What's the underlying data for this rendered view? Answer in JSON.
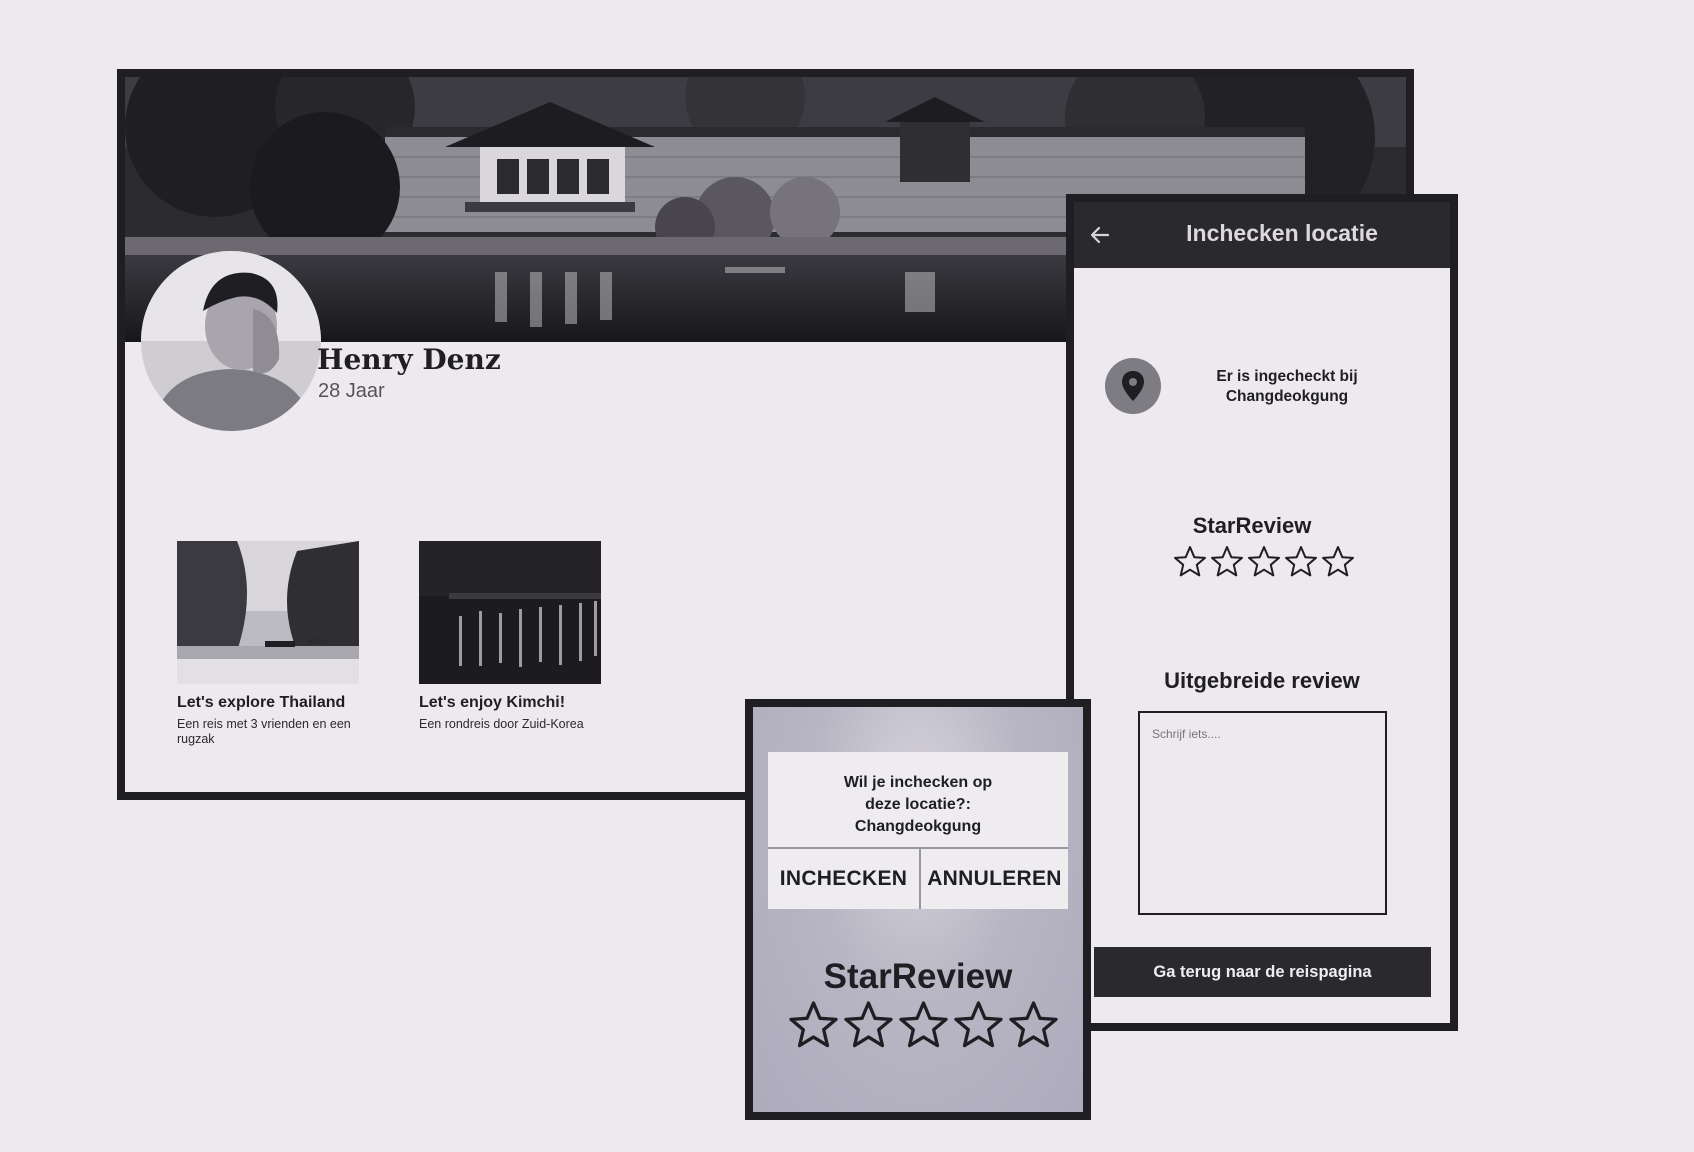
{
  "profile": {
    "name": "Henry Denz",
    "age": "28 Jaar",
    "trips": [
      {
        "title": "Let's explore Thailand",
        "description": "Een reis met 3 vrienden en een rugzak"
      },
      {
        "title": "Let's enjoy Kimchi!",
        "description": "Een rondreis door Zuid-Korea"
      }
    ]
  },
  "checkin": {
    "title": "Inchecken locatie",
    "status": "Er is ingecheckt bij Changdeokgung",
    "star_review_label": "StarReview",
    "rating": 0,
    "max_rating": 5,
    "long_review_label": "Uitgebreide review",
    "review_placeholder": "Schrijf iets....",
    "back_button": "Ga terug naar de reispagina"
  },
  "popup": {
    "question": "Wil je inchecken op deze locatie?: Changdeokgung",
    "checkin_button": "INCHECKEN",
    "cancel_button": "ANNULEREN",
    "star_review_label": "StarReview"
  },
  "icons": {
    "back": "back-arrow-icon",
    "location": "location-pin-icon",
    "star": "star-outline-icon"
  },
  "colors": {
    "background": "#ede9ee",
    "frame": "#1f1f23",
    "header": "#2a2a2e",
    "popup_background": "#b1aec0"
  }
}
